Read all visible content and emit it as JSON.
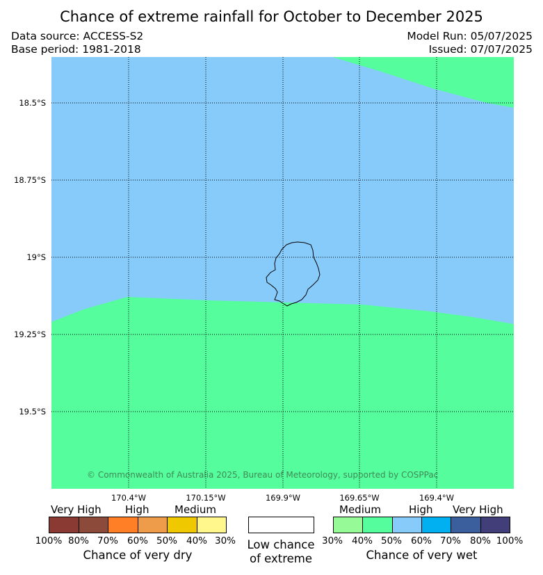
{
  "title": "Chance of extreme rainfall for October to December 2025",
  "data_source": "Data source: ACCESS-S2",
  "base_period": "Base period: 1981-2018",
  "model_run": "Model Run: 05/07/2025",
  "issued": "Issued: 07/07/2025",
  "map": {
    "colors": {
      "high_wet": "#87cbfb",
      "medium_wet": "#56fd9d",
      "coastline": "#000000"
    },
    "lat_labels": [
      "18.5°S",
      "18.75°S",
      "19°S",
      "19.25°S",
      "19.5°S"
    ],
    "lon_labels": [
      "170.4°W",
      "170.15°W",
      "169.9°W",
      "169.65°W",
      "169.4°W"
    ],
    "copyright": "© Commonwealth of Australia 2025, Bureau of Meteorology, supported by COSPPac"
  },
  "legend": {
    "dry": {
      "categories": [
        "Very High",
        "High",
        "Medium"
      ],
      "colors": [
        "#8a3a32",
        "#8c4a3a",
        "#ff7f27",
        "#ee9c4a",
        "#f0c800",
        "#fff68c"
      ],
      "ticks": [
        "100%",
        "80%",
        "70%",
        "60%",
        "50%",
        "40%",
        "30%"
      ],
      "caption": "Chance of very dry"
    },
    "low": {
      "line1": "Low chance",
      "line2": "of extreme"
    },
    "wet": {
      "categories": [
        "Medium",
        "High",
        "Very High"
      ],
      "colors": [
        "#96fb96",
        "#56fd9d",
        "#87cbfb",
        "#00b0f0",
        "#3a5f9c",
        "#413e79"
      ],
      "ticks": [
        "30%",
        "40%",
        "50%",
        "60%",
        "70%",
        "80%",
        "100%"
      ],
      "caption": "Chance of very wet"
    }
  }
}
